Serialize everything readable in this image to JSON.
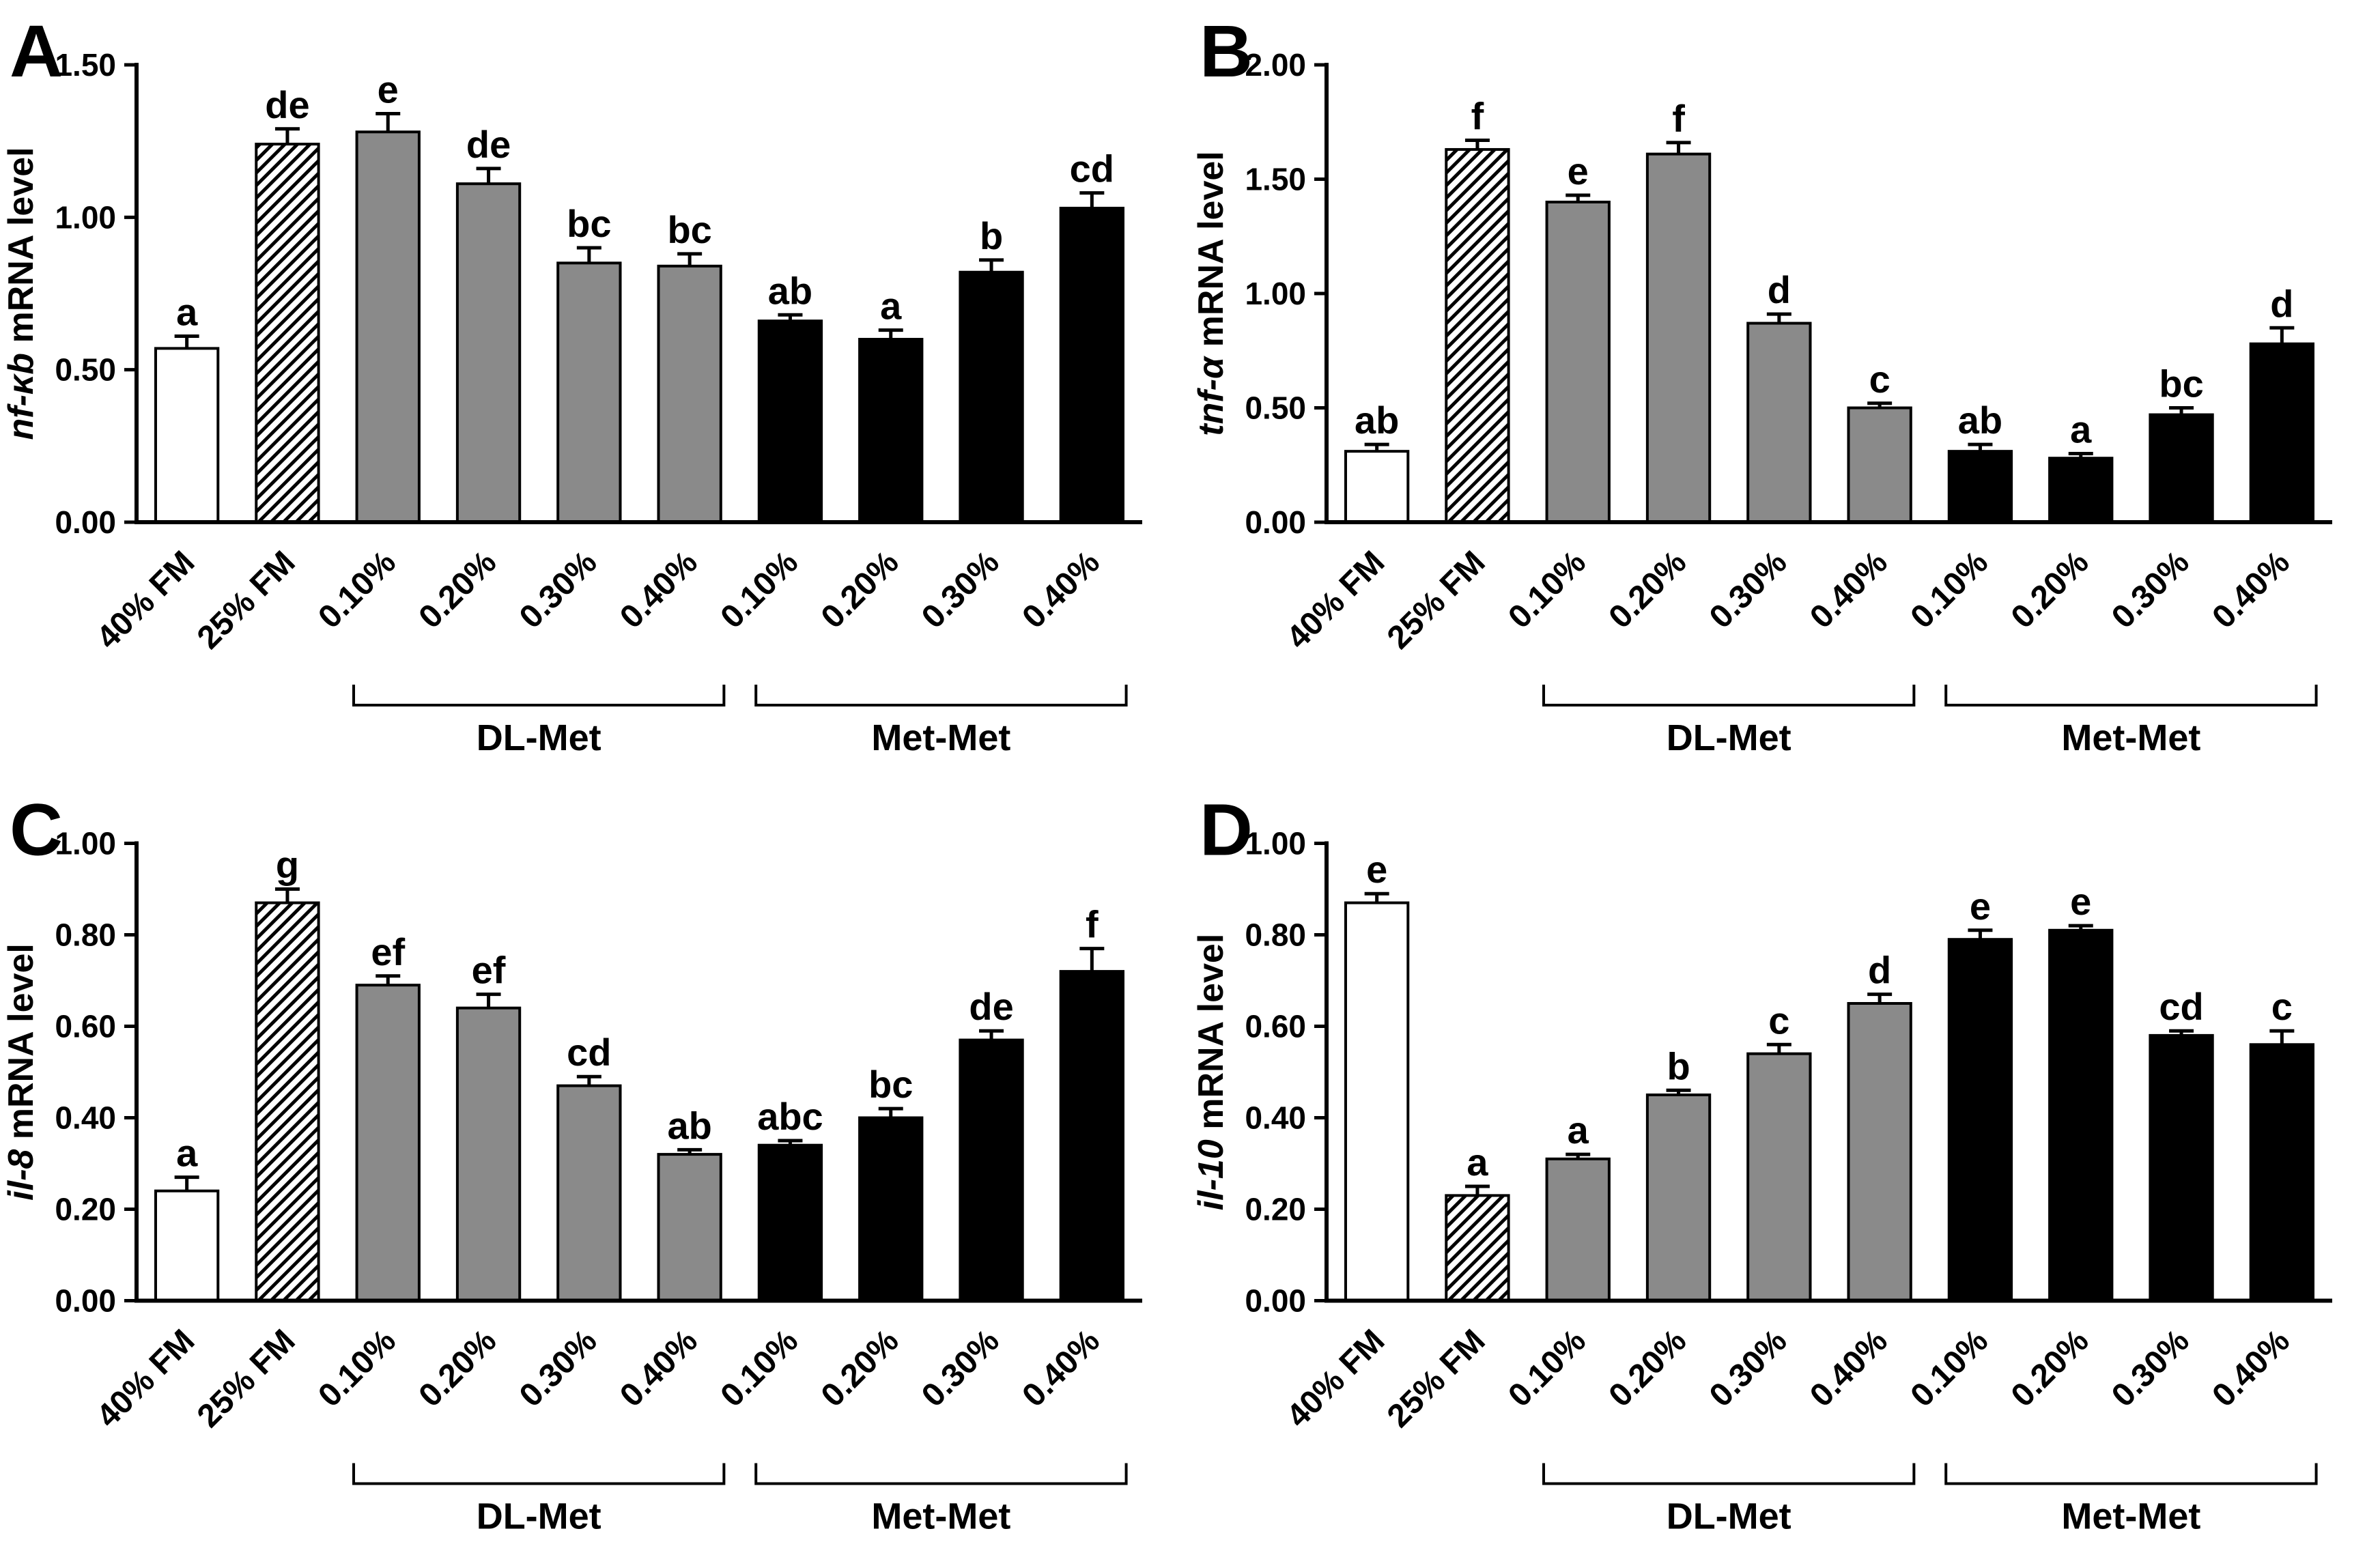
{
  "colors": {
    "bar_white": "#ffffff",
    "bar_gray": "#8a8a8a",
    "bar_black": "#000000",
    "axis": "#000000",
    "background": "#ffffff"
  },
  "chart_data": [
    {
      "type": "bar",
      "panel_label": "A",
      "ylabel_italic": "nf-κb",
      "ylabel_text": "mRNA level",
      "ylim": [
        0,
        1.5
      ],
      "yticks": [
        "0.00",
        "0.50",
        "1.00",
        "1.50"
      ],
      "categories": [
        "40% FM",
        "25% FM",
        "0.10%",
        "0.20%",
        "0.30%",
        "0.40%",
        "0.10%",
        "0.20%",
        "0.30%",
        "0.40%"
      ],
      "values": [
        0.57,
        1.24,
        1.28,
        1.11,
        0.85,
        0.84,
        0.66,
        0.6,
        0.82,
        1.03
      ],
      "errors": [
        0.04,
        0.05,
        0.06,
        0.05,
        0.05,
        0.04,
        0.02,
        0.03,
        0.04,
        0.05
      ],
      "sig_letters": [
        "a",
        "de",
        "e",
        "de",
        "bc",
        "bc",
        "ab",
        "a",
        "b",
        "cd"
      ],
      "bar_styles": [
        "white",
        "hatched",
        "gray",
        "gray",
        "gray",
        "gray",
        "black",
        "black",
        "black",
        "black"
      ],
      "groups": [
        {
          "label": "DL-Met",
          "start": 2,
          "end": 5
        },
        {
          "label": "Met-Met",
          "start": 6,
          "end": 9
        }
      ]
    },
    {
      "type": "bar",
      "panel_label": "B",
      "ylabel_italic": "tnf-α",
      "ylabel_text": "mRNA level",
      "ylim": [
        0,
        2.0
      ],
      "yticks": [
        "0.00",
        "0.50",
        "1.00",
        "1.50",
        "2.00"
      ],
      "categories": [
        "40% FM",
        "25% FM",
        "0.10%",
        "0.20%",
        "0.30%",
        "0.40%",
        "0.10%",
        "0.20%",
        "0.30%",
        "0.40%"
      ],
      "values": [
        0.31,
        1.63,
        1.4,
        1.61,
        0.87,
        0.5,
        0.31,
        0.28,
        0.47,
        0.78
      ],
      "errors": [
        0.03,
        0.04,
        0.03,
        0.05,
        0.04,
        0.02,
        0.03,
        0.02,
        0.03,
        0.07
      ],
      "sig_letters": [
        "ab",
        "f",
        "e",
        "f",
        "d",
        "c",
        "ab",
        "a",
        "bc",
        "d"
      ],
      "bar_styles": [
        "white",
        "hatched",
        "gray",
        "gray",
        "gray",
        "gray",
        "black",
        "black",
        "black",
        "black"
      ],
      "groups": [
        {
          "label": "DL-Met",
          "start": 2,
          "end": 5
        },
        {
          "label": "Met-Met",
          "start": 6,
          "end": 9
        }
      ]
    },
    {
      "type": "bar",
      "panel_label": "C",
      "ylabel_italic": "il-8",
      "ylabel_text": "mRNA level",
      "ylim": [
        0,
        1.0
      ],
      "yticks": [
        "0.00",
        "0.20",
        "0.40",
        "0.60",
        "0.80",
        "1.00"
      ],
      "categories": [
        "40% FM",
        "25% FM",
        "0.10%",
        "0.20%",
        "0.30%",
        "0.40%",
        "0.10%",
        "0.20%",
        "0.30%",
        "0.40%"
      ],
      "values": [
        0.24,
        0.87,
        0.69,
        0.64,
        0.47,
        0.32,
        0.34,
        0.4,
        0.57,
        0.72
      ],
      "errors": [
        0.03,
        0.03,
        0.02,
        0.03,
        0.02,
        0.01,
        0.01,
        0.02,
        0.02,
        0.05
      ],
      "sig_letters": [
        "a",
        "g",
        "ef",
        "ef",
        "cd",
        "ab",
        "abc",
        "bc",
        "de",
        "f"
      ],
      "bar_styles": [
        "white",
        "hatched",
        "gray",
        "gray",
        "gray",
        "gray",
        "black",
        "black",
        "black",
        "black"
      ],
      "groups": [
        {
          "label": "DL-Met",
          "start": 2,
          "end": 5
        },
        {
          "label": "Met-Met",
          "start": 6,
          "end": 9
        }
      ]
    },
    {
      "type": "bar",
      "panel_label": "D",
      "ylabel_italic": "il-10",
      "ylabel_text": "mRNA level",
      "ylim": [
        0,
        1.0
      ],
      "yticks": [
        "0.00",
        "0.20",
        "0.40",
        "0.60",
        "0.80",
        "1.00"
      ],
      "categories": [
        "40% FM",
        "25% FM",
        "0.10%",
        "0.20%",
        "0.30%",
        "0.40%",
        "0.10%",
        "0.20%",
        "0.30%",
        "0.40%"
      ],
      "values": [
        0.87,
        0.23,
        0.31,
        0.45,
        0.54,
        0.65,
        0.79,
        0.81,
        0.58,
        0.56
      ],
      "errors": [
        0.02,
        0.02,
        0.01,
        0.01,
        0.02,
        0.02,
        0.02,
        0.01,
        0.01,
        0.03
      ],
      "sig_letters": [
        "e",
        "a",
        "a",
        "b",
        "c",
        "d",
        "e",
        "e",
        "cd",
        "c"
      ],
      "bar_styles": [
        "white",
        "hatched",
        "gray",
        "gray",
        "gray",
        "gray",
        "black",
        "black",
        "black",
        "black"
      ],
      "groups": [
        {
          "label": "DL-Met",
          "start": 2,
          "end": 5
        },
        {
          "label": "Met-Met",
          "start": 6,
          "end": 9
        }
      ]
    }
  ]
}
